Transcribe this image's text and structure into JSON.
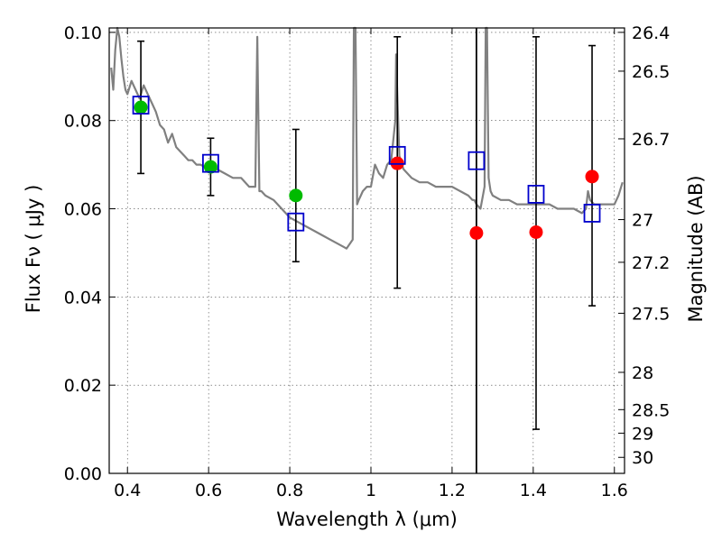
{
  "chart_data": {
    "type": "scatter",
    "xlabel": "Wavelength  λ (μm)",
    "ylabel": "Flux  Fν  ( μJy )",
    "y2label": "Magnitude (AB)",
    "xlim": [
      0.355,
      1.625
    ],
    "ylim": [
      0.0,
      0.101
    ],
    "grid": true,
    "x_ticks": [
      0.4,
      0.6,
      0.8,
      1.0,
      1.2,
      1.4,
      1.6
    ],
    "x_tick_labels": [
      "0.4",
      "0.6",
      "0.8",
      "1",
      "1.2",
      "1.4",
      "1.6"
    ],
    "y_ticks": [
      0.0,
      0.02,
      0.04,
      0.06,
      0.08,
      0.1
    ],
    "y_tick_labels": [
      "0.00",
      "0.02",
      "0.04",
      "0.06",
      "0.08",
      "0.10"
    ],
    "mag_ticks": [
      26.4,
      26.5,
      26.7,
      27,
      27.2,
      27.5,
      28,
      28.5,
      29,
      30
    ],
    "mag_tick_labels": [
      "26.4",
      "26.5",
      "26.7",
      "27",
      "27.2",
      "27.5",
      "28",
      "28.5",
      "29",
      "30"
    ],
    "vertical_line_x": 1.26,
    "series": [
      {
        "type": "line",
        "color": "#808080",
        "x": [
          0.36,
          0.365,
          0.37,
          0.375,
          0.38,
          0.385,
          0.39,
          0.395,
          0.4,
          0.41,
          0.42,
          0.43,
          0.44,
          0.45,
          0.46,
          0.47,
          0.48,
          0.49,
          0.5,
          0.51,
          0.52,
          0.53,
          0.54,
          0.55,
          0.56,
          0.57,
          0.58,
          0.6,
          0.62,
          0.64,
          0.66,
          0.68,
          0.7,
          0.715,
          0.72,
          0.725,
          0.73,
          0.74,
          0.76,
          0.78,
          0.8,
          0.82,
          0.84,
          0.86,
          0.88,
          0.9,
          0.92,
          0.94,
          0.955,
          0.958,
          0.962,
          0.966,
          0.97,
          0.975,
          0.98,
          0.99,
          1.0,
          1.01,
          1.02,
          1.03,
          1.04,
          1.05,
          1.06,
          1.062,
          1.065,
          1.07,
          1.08,
          1.09,
          1.1,
          1.12,
          1.14,
          1.16,
          1.18,
          1.2,
          1.22,
          1.24,
          1.25,
          1.255,
          1.26,
          1.27,
          1.28,
          1.283,
          1.286,
          1.29,
          1.295,
          1.3,
          1.32,
          1.34,
          1.36,
          1.38,
          1.4,
          1.42,
          1.44,
          1.46,
          1.48,
          1.5,
          1.52,
          1.53,
          1.535,
          1.54,
          1.55,
          1.56,
          1.58,
          1.6,
          1.61,
          1.62
        ],
        "y": [
          0.092,
          0.087,
          0.096,
          0.101,
          0.099,
          0.094,
          0.09,
          0.087,
          0.086,
          0.089,
          0.087,
          0.085,
          0.088,
          0.086,
          0.084,
          0.082,
          0.079,
          0.078,
          0.075,
          0.077,
          0.074,
          0.073,
          0.072,
          0.071,
          0.071,
          0.07,
          0.07,
          0.069,
          0.069,
          0.068,
          0.067,
          0.067,
          0.065,
          0.065,
          0.099,
          0.064,
          0.064,
          0.063,
          0.062,
          0.06,
          0.058,
          0.057,
          0.056,
          0.055,
          0.054,
          0.053,
          0.052,
          0.051,
          0.053,
          0.101,
          0.101,
          0.061,
          0.062,
          0.063,
          0.064,
          0.065,
          0.065,
          0.07,
          0.068,
          0.067,
          0.07,
          0.071,
          0.08,
          0.095,
          0.086,
          0.072,
          0.069,
          0.068,
          0.067,
          0.066,
          0.066,
          0.065,
          0.065,
          0.065,
          0.064,
          0.063,
          0.062,
          0.062,
          0.061,
          0.06,
          0.065,
          0.101,
          0.101,
          0.067,
          0.064,
          0.063,
          0.062,
          0.062,
          0.061,
          0.061,
          0.061,
          0.061,
          0.061,
          0.06,
          0.06,
          0.06,
          0.059,
          0.06,
          0.064,
          0.062,
          0.061,
          0.061,
          0.061,
          0.061,
          0.063,
          0.066
        ]
      },
      {
        "type": "errorbar",
        "color": "#000000",
        "x": [
          0.433,
          0.605,
          0.815,
          1.065,
          1.407,
          1.545
        ],
        "lower": [
          0.068,
          0.063,
          0.048,
          0.042,
          0.01,
          0.038
        ],
        "upper": [
          0.098,
          0.076,
          0.078,
          0.099,
          0.099,
          0.097
        ]
      },
      {
        "type": "scatter",
        "marker": "circle",
        "color": "#00bb00",
        "x": [
          0.433,
          0.605,
          0.815
        ],
        "y": [
          0.083,
          0.0695,
          0.063
        ]
      },
      {
        "type": "scatter",
        "marker": "circle",
        "color": "#ff0000",
        "x": [
          1.065,
          1.26,
          1.407,
          1.545
        ],
        "y": [
          0.0703,
          0.0545,
          0.0547,
          0.0673
        ]
      },
      {
        "type": "scatter",
        "marker": "square-open",
        "color": "#0000cc",
        "x": [
          0.433,
          0.605,
          0.815,
          1.065,
          1.26,
          1.407,
          1.545
        ],
        "y": [
          0.0835,
          0.0703,
          0.057,
          0.0721,
          0.0709,
          0.0633,
          0.059
        ]
      }
    ]
  }
}
